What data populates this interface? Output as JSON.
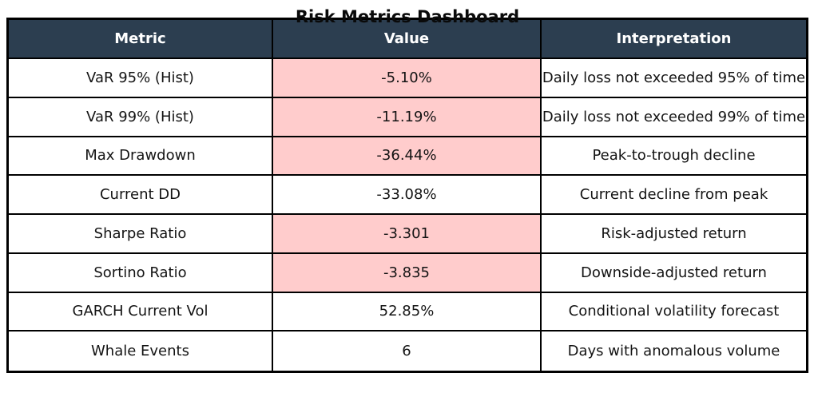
{
  "chart_data": {
    "type": "table",
    "title": "Risk Metrics Dashboard",
    "columns": [
      "Metric",
      "Value",
      "Interpretation"
    ],
    "rows": [
      {
        "metric": "VaR 95% (Hist)",
        "value": "-5.10%",
        "interpretation": "Daily loss not exceeded 95% of time",
        "highlighted": true
      },
      {
        "metric": "VaR 99% (Hist)",
        "value": "-11.19%",
        "interpretation": "Daily loss not exceeded 99% of time",
        "highlighted": true
      },
      {
        "metric": "Max Drawdown",
        "value": "-36.44%",
        "interpretation": "Peak-to-trough decline",
        "highlighted": true
      },
      {
        "metric": "Current DD",
        "value": "-33.08%",
        "interpretation": "Current decline from peak",
        "highlighted": false
      },
      {
        "metric": "Sharpe Ratio",
        "value": "-3.301",
        "interpretation": "Risk-adjusted return",
        "highlighted": true
      },
      {
        "metric": "Sortino Ratio",
        "value": "-3.835",
        "interpretation": "Downside-adjusted return",
        "highlighted": true
      },
      {
        "metric": "GARCH Current Vol",
        "value": "52.85%",
        "interpretation": "Conditional volatility forecast",
        "highlighted": false
      },
      {
        "metric": "Whale Events",
        "value": "6",
        "interpretation": "Days with anomalous volume",
        "highlighted": false
      }
    ],
    "layout_hints": {
      "highlight_applies_to": "value-column-only",
      "legend": "none",
      "grid": "full-cell-borders"
    },
    "colors": {
      "header_bg": "#2c3e50",
      "header_text": "#ffffff",
      "highlight_bg": "#ffcccc",
      "row_bg": "#ffffff",
      "border": "#000000",
      "text": "#141414",
      "title_text": "#0a0a0a"
    }
  }
}
